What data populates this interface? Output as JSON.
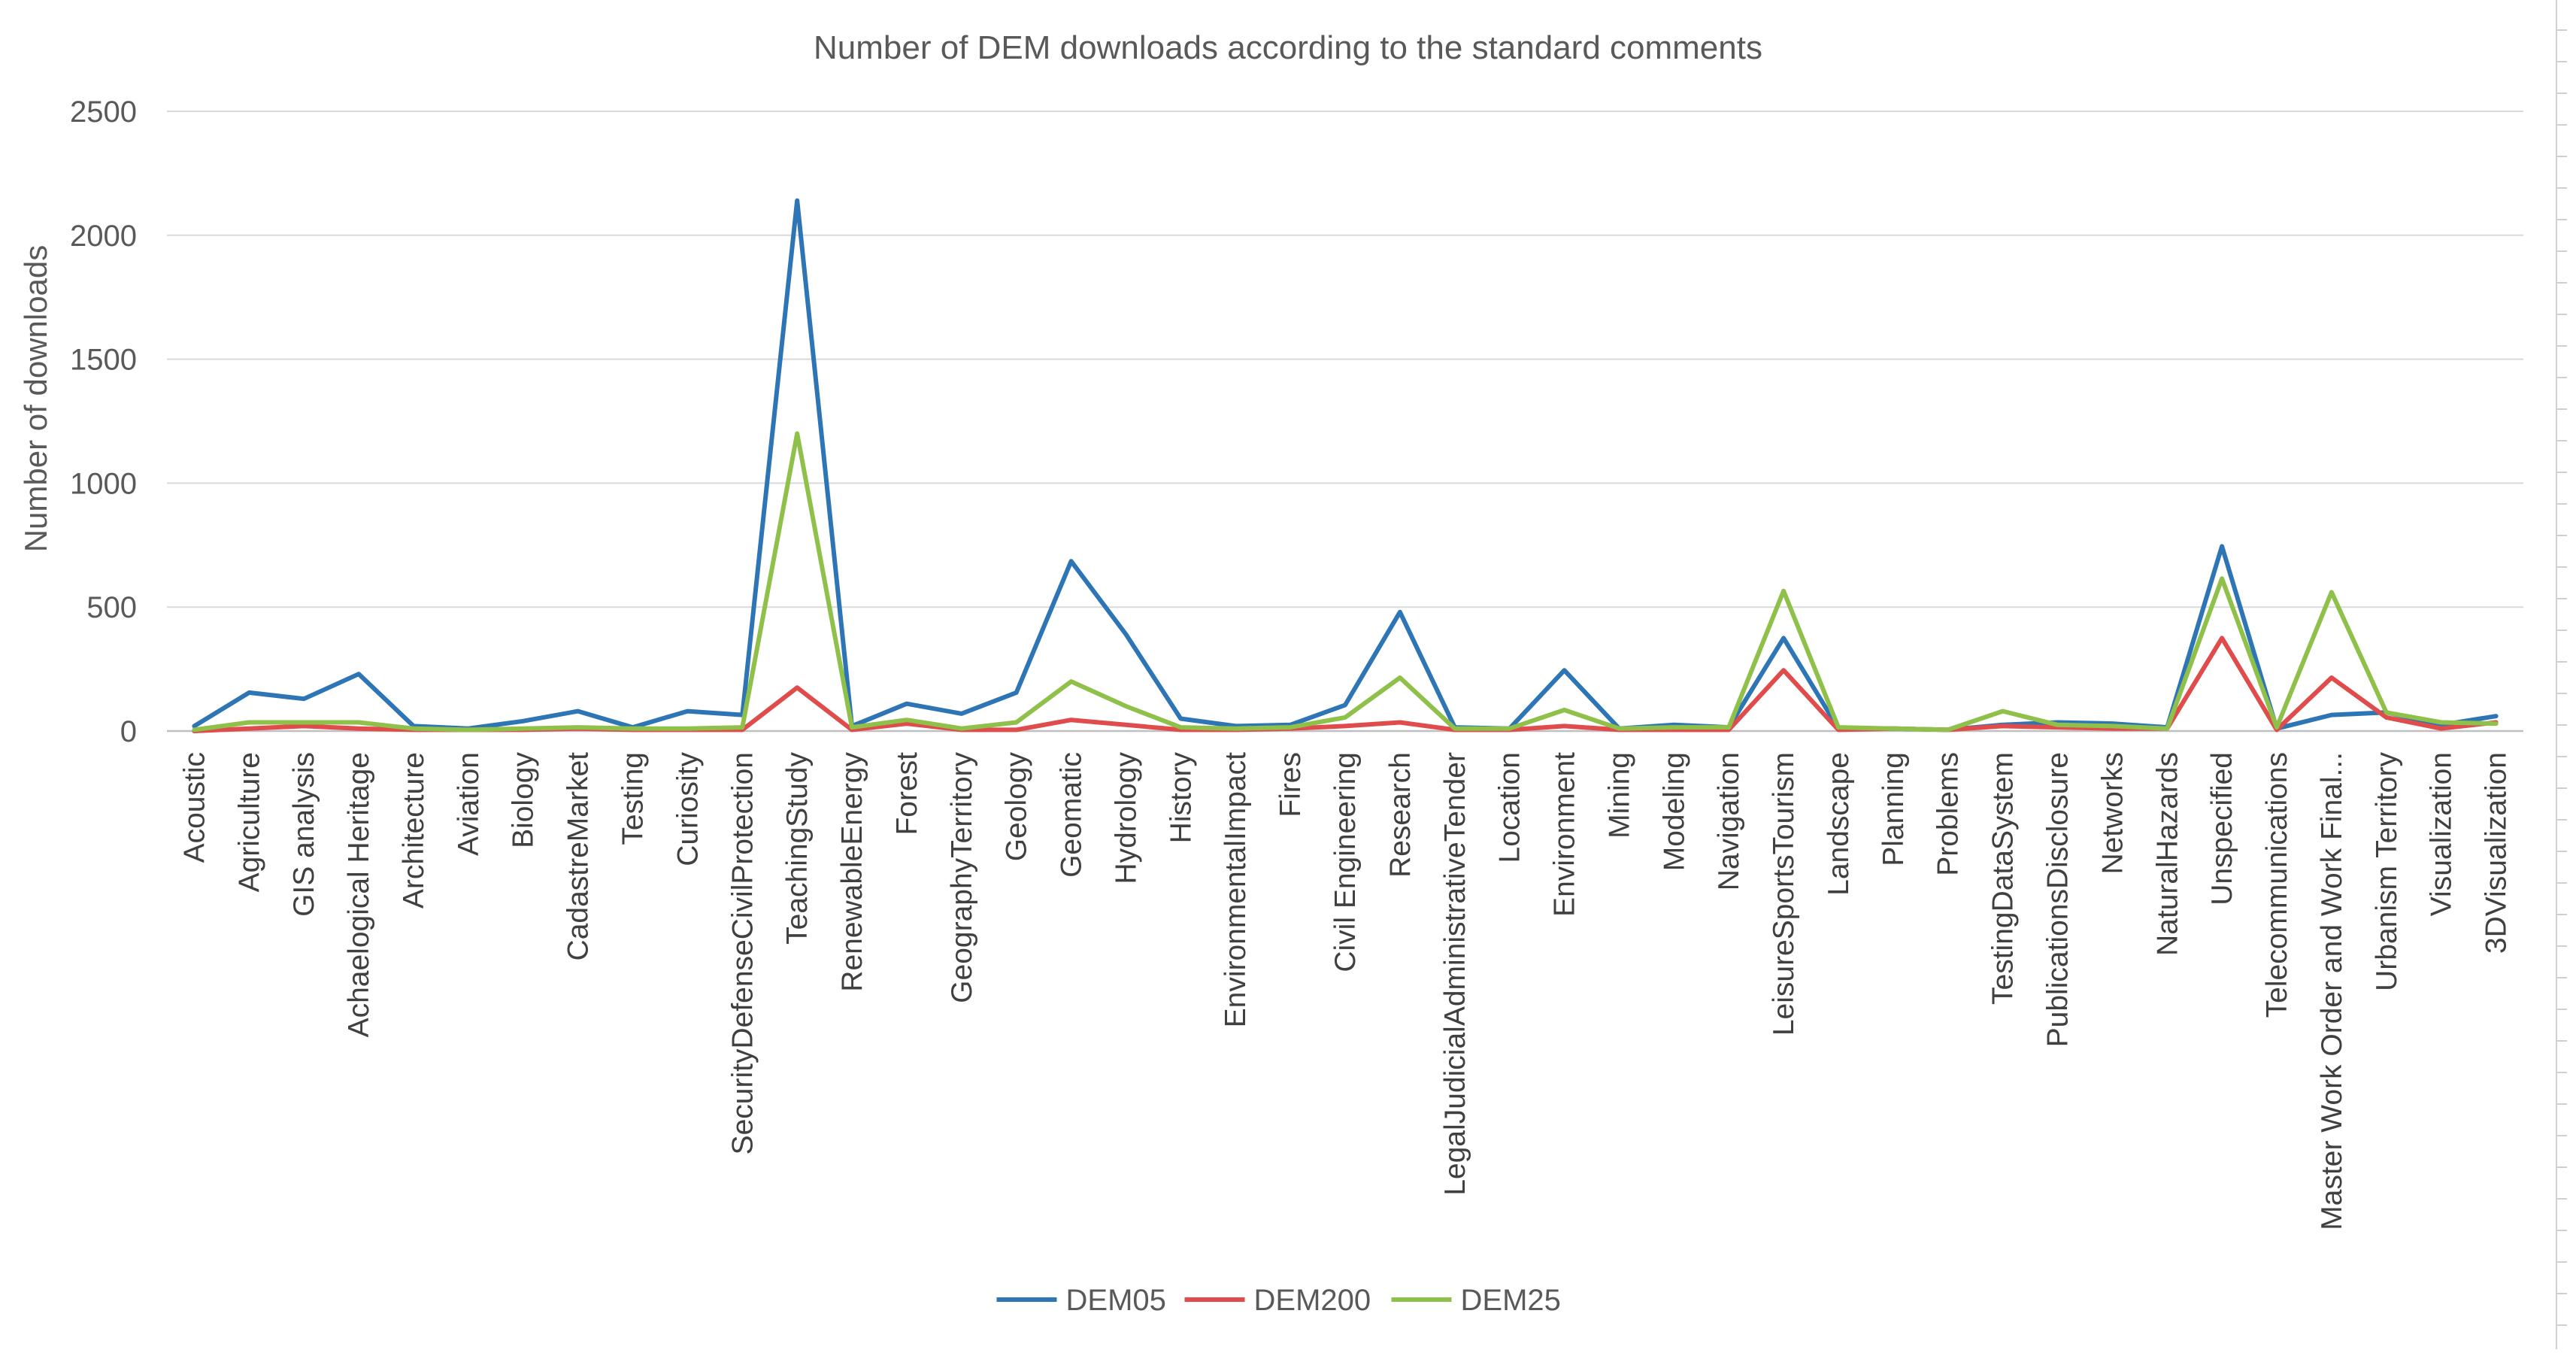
{
  "chart_data": {
    "type": "line",
    "title": "Number of DEM downloads according to the standard comments",
    "xlabel": "",
    "ylabel": "Number of downloads",
    "ylim": [
      0,
      2500
    ],
    "yticks": [
      0,
      500,
      1000,
      1500,
      2000,
      2500
    ],
    "grid": true,
    "legend_position": "bottom",
    "categories": [
      "Acoustic",
      "Agriculture",
      "GIS analysis",
      "Achaelogical Heritage",
      "Architecture",
      "Aviation",
      "Biology",
      "CadastreMarket",
      "Testing",
      "Curiosity",
      "SecurityDefenseCivilProtection",
      "TeachingStudy",
      "RenewableEnergy",
      "Forest",
      "GeographyTerritory",
      "Geology",
      "Geomatic",
      "Hydrology",
      "History",
      "EnvironmentalImpact",
      "Fires",
      "Civil Engineering",
      "Research",
      "LegalJudicialAdministrativeTender",
      "Location",
      "Environment",
      "Mining",
      "Modeling",
      "Navigation",
      "LeisureSportsTourism",
      "Landscape",
      "Planning",
      "Problems",
      "TestingDataSystem",
      "PublicationsDisclosure",
      "Networks",
      "NaturalHazards",
      "Unspecified",
      "Telecommunications",
      "Master Work Order and Work Final...",
      "Urbanism Territory",
      "Visualization",
      "3DVisualization"
    ],
    "series": [
      {
        "name": "DEM05",
        "color": "#2e75b6",
        "values": [
          20,
          155,
          130,
          230,
          20,
          10,
          40,
          80,
          15,
          80,
          65,
          2140,
          20,
          110,
          70,
          155,
          685,
          390,
          50,
          20,
          25,
          105,
          480,
          15,
          10,
          245,
          10,
          25,
          15,
          375,
          10,
          10,
          5,
          25,
          35,
          30,
          15,
          745,
          10,
          65,
          75,
          25,
          60
        ]
      },
      {
        "name": "DEM200",
        "color": "#e04b4b",
        "values": [
          0,
          10,
          20,
          10,
          5,
          5,
          5,
          10,
          5,
          5,
          5,
          175,
          5,
          30,
          5,
          5,
          45,
          25,
          5,
          5,
          10,
          20,
          35,
          5,
          5,
          20,
          5,
          5,
          5,
          245,
          5,
          10,
          5,
          20,
          15,
          10,
          10,
          375,
          5,
          215,
          55,
          10,
          35
        ]
      },
      {
        "name": "DEM25",
        "color": "#8fc04a",
        "values": [
          5,
          35,
          35,
          35,
          10,
          5,
          10,
          15,
          10,
          10,
          15,
          1200,
          15,
          45,
          10,
          35,
          200,
          100,
          15,
          10,
          15,
          55,
          215,
          10,
          10,
          85,
          10,
          15,
          15,
          565,
          15,
          10,
          5,
          80,
          25,
          20,
          10,
          615,
          15,
          560,
          75,
          35,
          30
        ]
      }
    ]
  }
}
